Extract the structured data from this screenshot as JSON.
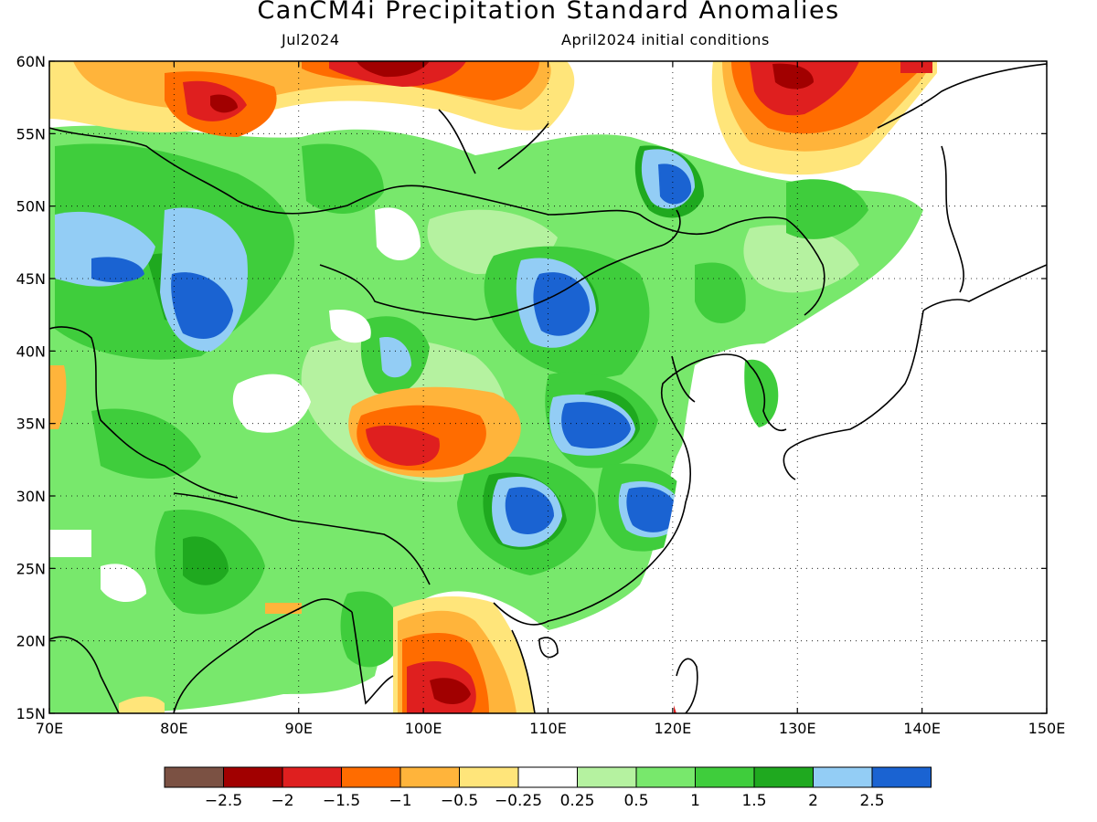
{
  "header": {
    "title": "CanCM4i Precipitation Standard Anomalies",
    "valid_month": "Jul2024",
    "init_conditions": "April2024 initial conditions"
  },
  "map": {
    "lon_range": [
      70,
      150
    ],
    "lat_range": [
      15,
      60
    ],
    "lon_ticks": [
      {
        "value": 70,
        "label": "70E"
      },
      {
        "value": 80,
        "label": "80E"
      },
      {
        "value": 90,
        "label": "90E"
      },
      {
        "value": 100,
        "label": "100E"
      },
      {
        "value": 110,
        "label": "110E"
      },
      {
        "value": 120,
        "label": "120E"
      },
      {
        "value": 130,
        "label": "130E"
      },
      {
        "value": 140,
        "label": "140E"
      },
      {
        "value": 150,
        "label": "150E"
      }
    ],
    "lat_ticks": [
      {
        "value": 15,
        "label": "15N"
      },
      {
        "value": 20,
        "label": "20N"
      },
      {
        "value": 25,
        "label": "25N"
      },
      {
        "value": 30,
        "label": "30N"
      },
      {
        "value": 35,
        "label": "35N"
      },
      {
        "value": 40,
        "label": "40N"
      },
      {
        "value": 45,
        "label": "45N"
      },
      {
        "value": 50,
        "label": "50N"
      },
      {
        "value": 55,
        "label": "55N"
      },
      {
        "value": 60,
        "label": "60N"
      }
    ],
    "gridlines": "dotted"
  },
  "colorbar": {
    "colors": [
      "#7b5143",
      "#a10000",
      "#df1f1f",
      "#ff6c00",
      "#ffb43b",
      "#ffe57a",
      "#ffffff",
      "#b5f2a0",
      "#78e86c",
      "#3fcd3c",
      "#1fa91f",
      "#93cdf5",
      "#1a63d2"
    ],
    "labels": [
      "-2.5",
      "-2",
      "-1.5",
      "-1",
      "-0.5",
      "-0.25",
      "0.25",
      "0.5",
      "1",
      "1.5",
      "2",
      "2.5"
    ]
  }
}
